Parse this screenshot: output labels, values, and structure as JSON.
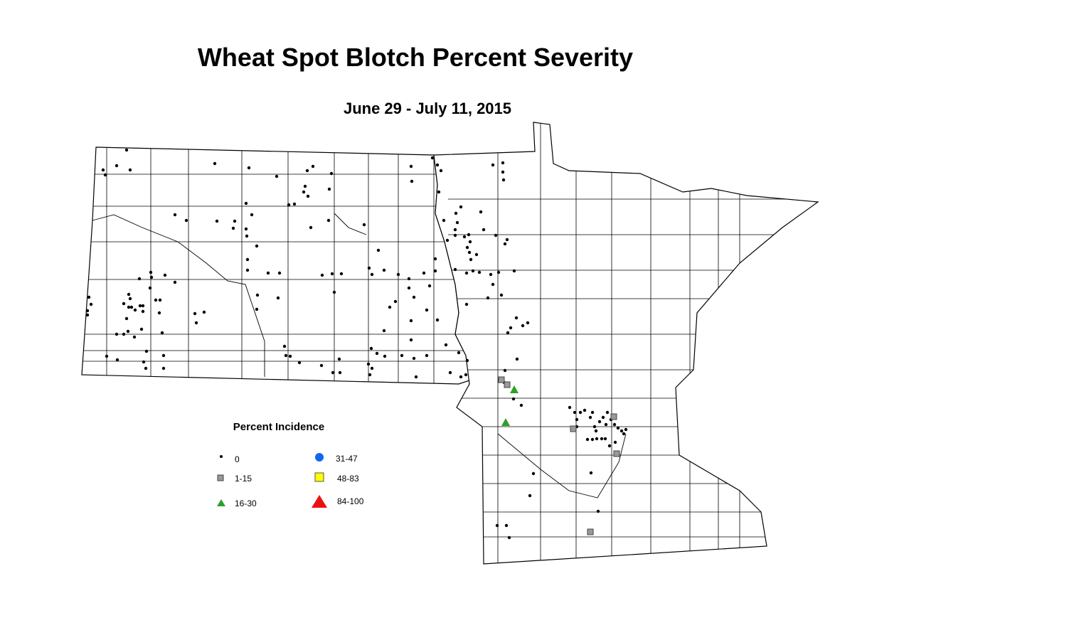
{
  "title": "Wheat Spot Blotch Percent Severity",
  "subtitle": "June 29 - July 11, 2015",
  "legend": {
    "title": "Percent Incidence",
    "items": [
      "0",
      "1-15",
      "16-30",
      "31-47",
      "48-83",
      "84-100"
    ]
  }
}
